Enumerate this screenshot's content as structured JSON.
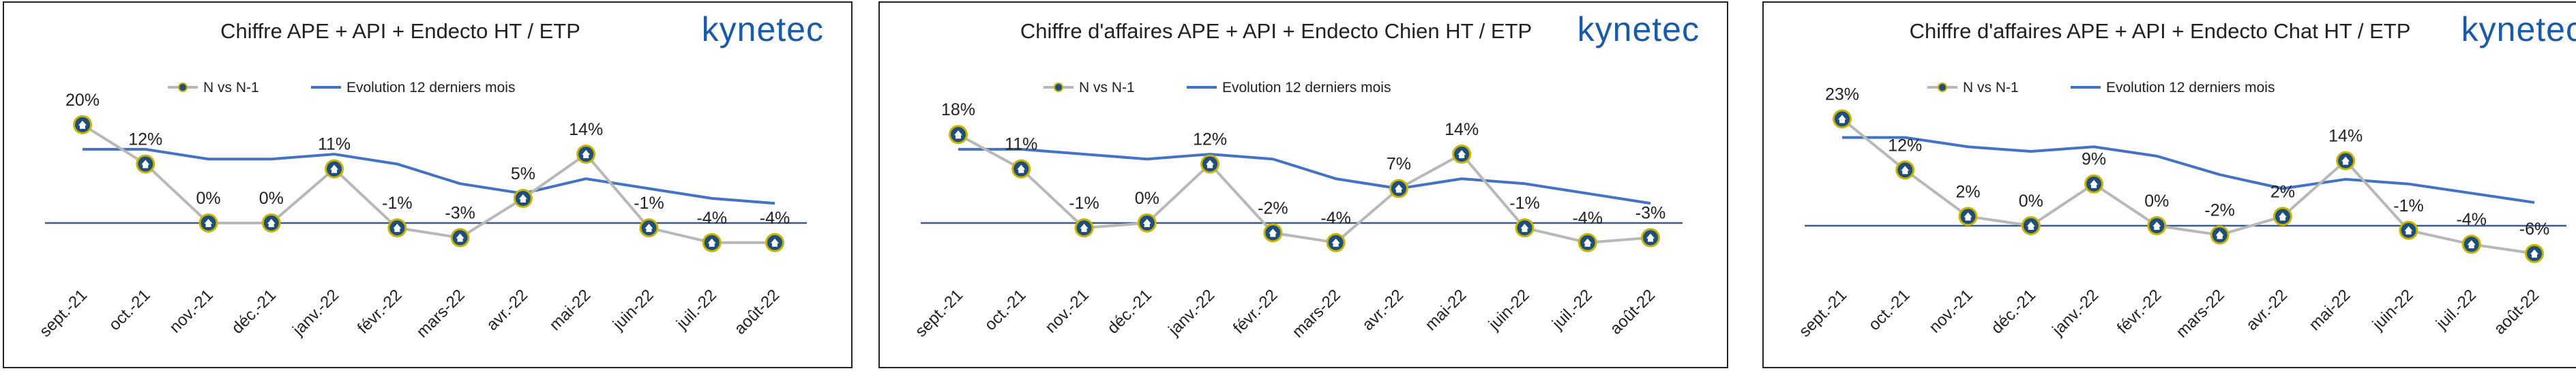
{
  "brand": {
    "logo_text": "kynetec",
    "colors": {
      "logo": "#1a5aa6",
      "trend_line": "#4472c4",
      "nvsn_line": "#b8b8b8",
      "axis": "#3a5a8a",
      "marker_outer": "#1f4e79",
      "marker_ring": "#c8b400",
      "marker_inner": "#ffffff"
    }
  },
  "chart_data": [
    {
      "type": "line",
      "title": "Chiffre APE + API + Endecto HT / ETP",
      "categories": [
        "sept.-21",
        "oct.-21",
        "nov.-21",
        "déc.-21",
        "janv.-22",
        "févr.-22",
        "mars-22",
        "avr.-22",
        "mai-22",
        "juin-22",
        "juil.-22",
        "août-22"
      ],
      "series": [
        {
          "name": "N vs N-1",
          "values": [
            20,
            12,
            0,
            0,
            11,
            -1,
            -3,
            5,
            14,
            -1,
            -4,
            -4
          ],
          "labels": [
            "20%",
            "12%",
            "0%",
            "0%",
            "11%",
            "-1%",
            "-3%",
            "5%",
            "14%",
            "-1%",
            "-4%",
            "-4%"
          ]
        },
        {
          "name": "Evolution 12 derniers mois",
          "values": [
            15,
            15,
            13,
            13,
            14,
            12,
            8,
            6,
            9,
            7,
            5,
            4
          ]
        }
      ],
      "ylim": [
        -10,
        24
      ],
      "legend": [
        "N vs N-1",
        "Evolution 12 derniers mois"
      ]
    },
    {
      "type": "line",
      "title": "Chiffre d'affaires APE + API + Endecto  Chien HT / ETP",
      "categories": [
        "sept.-21",
        "oct.-21",
        "nov.-21",
        "déc.-21",
        "janv.-22",
        "févr.-22",
        "mars-22",
        "avr.-22",
        "mai-22",
        "juin-22",
        "juil.-22",
        "août-22"
      ],
      "series": [
        {
          "name": "N vs N-1",
          "values": [
            18,
            11,
            -1,
            0,
            12,
            -2,
            -4,
            7,
            14,
            -1,
            -4,
            -3
          ],
          "labels": [
            "18%",
            "11%",
            "-1%",
            "0%",
            "12%",
            "-2%",
            "-4%",
            "7%",
            "14%",
            "-1%",
            "-4%",
            "-3%"
          ]
        },
        {
          "name": "Evolution 12 derniers mois",
          "values": [
            15,
            15,
            14,
            13,
            14,
            13,
            9,
            7,
            9,
            8,
            6,
            4
          ]
        }
      ],
      "ylim": [
        -10,
        24
      ],
      "legend": [
        "N vs N-1",
        "Evolution 12 derniers mois"
      ]
    },
    {
      "type": "line",
      "title": "Chiffre d'affaires APE + API + Endecto  Chat HT / ETP",
      "categories": [
        "sept.-21",
        "oct.-21",
        "nov.-21",
        "déc.-21",
        "janv.-22",
        "févr.-22",
        "mars-22",
        "avr.-22",
        "mai-22",
        "juin-22",
        "juil.-22",
        "août-22"
      ],
      "series": [
        {
          "name": "N vs N-1",
          "values": [
            23,
            12,
            2,
            0,
            9,
            0,
            -2,
            2,
            14,
            -1,
            -4,
            -6
          ],
          "labels": [
            "23%",
            "12%",
            "2%",
            "0%",
            "9%",
            "0%",
            "-2%",
            "2%",
            "14%",
            "-1%",
            "-4%",
            "-6%"
          ]
        },
        {
          "name": "Evolution 12 derniers mois",
          "values": [
            19,
            19,
            17,
            16,
            17,
            15,
            11,
            8,
            10,
            9,
            7,
            5
          ]
        }
      ],
      "ylim": [
        -10,
        26
      ],
      "legend": [
        "N vs N-1",
        "Evolution 12 derniers mois"
      ]
    }
  ]
}
